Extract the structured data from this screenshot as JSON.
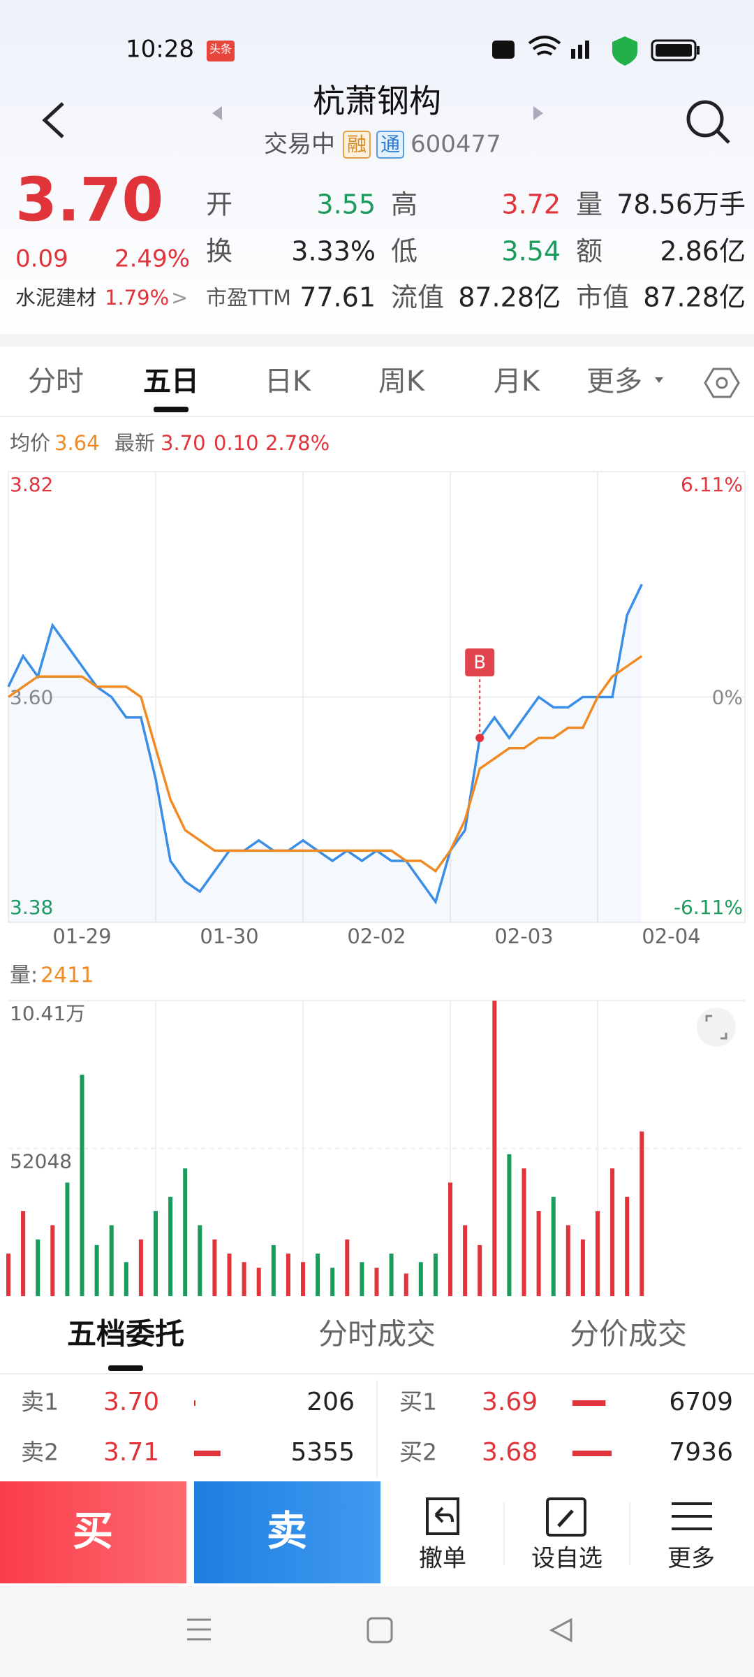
{
  "status_bar": {
    "time": "10:28",
    "badge": "头条"
  },
  "header": {
    "title": "杭萧钢构",
    "status": "交易中",
    "tag1": "融",
    "tag2": "通",
    "code": "600477"
  },
  "quote": {
    "price": "3.70",
    "change": "0.09",
    "change_pct": "2.49%",
    "sector": "水泥建材",
    "sector_pct": "1.79%",
    "sector_arrow": ">",
    "fields": [
      {
        "label": "开",
        "value": "3.55"
      },
      {
        "label": "高",
        "value": "3.72"
      },
      {
        "label": "量",
        "value": "78.56万手"
      },
      {
        "label": "换",
        "value": "3.33%"
      },
      {
        "label": "低",
        "value": "3.54"
      },
      {
        "label": "额",
        "value": "2.86亿"
      },
      {
        "label": "市盈TTM",
        "value": "77.61"
      },
      {
        "label": "流值",
        "value": "87.28亿"
      },
      {
        "label": "市值",
        "value": "87.28亿"
      }
    ]
  },
  "tabs": [
    "分时",
    "五日",
    "日K",
    "周K",
    "月K",
    "更多"
  ],
  "chart_data": [
    {
      "type": "line",
      "x": [
        0,
        0.1,
        0.2,
        0.3,
        0.4,
        0.5,
        0.6,
        0.7,
        0.8,
        0.9,
        1,
        1.1,
        1.2,
        1.3,
        1.4,
        1.5,
        1.6,
        1.7,
        1.8,
        1.9,
        2,
        2.1,
        2.2,
        2.3,
        2.4,
        2.5,
        2.6,
        2.7,
        2.8,
        2.9,
        3,
        3.1,
        3.2,
        3.3,
        3.4,
        3.5,
        3.6,
        3.7,
        3.8,
        3.9,
        4,
        4.1,
        4.2,
        4.3
      ],
      "xlim": [
        0,
        5
      ],
      "xticks": [
        {
          "value": 0.5,
          "label": "01-29"
        },
        {
          "value": 1.5,
          "label": "01-30"
        },
        {
          "value": 2.5,
          "label": "02-02"
        },
        {
          "value": 3.5,
          "label": "02-03"
        },
        {
          "value": 4.5,
          "label": "02-04"
        }
      ],
      "ylim": [
        3.38,
        3.82
      ],
      "yticks": [
        3.82,
        {
          "value": 3.6,
          "label": "3.60"
        },
        3.38
      ],
      "y2lim": [
        -6.11,
        6.11
      ],
      "y2ticks": [
        {
          "value": 6.11,
          "label": "6.11%"
        },
        {
          "value": 0,
          "label": "0%"
        },
        {
          "value": -6.11,
          "label": "-6.11%"
        }
      ],
      "series": [
        {
          "name": "最新",
          "color": "#3a8ee6",
          "legend_text": [
            "3.70",
            "0.10",
            "2.78%"
          ],
          "values": [
            3.61,
            3.64,
            3.62,
            3.67,
            3.65,
            3.63,
            3.61,
            3.6,
            3.58,
            3.58,
            3.52,
            3.44,
            3.42,
            3.41,
            3.43,
            3.45,
            3.45,
            3.46,
            3.45,
            3.45,
            3.46,
            3.45,
            3.44,
            3.45,
            3.44,
            3.45,
            3.44,
            3.44,
            3.42,
            3.4,
            3.45,
            3.47,
            3.56,
            3.58,
            3.56,
            3.58,
            3.6,
            3.59,
            3.59,
            3.6,
            3.6,
            3.6,
            3.68,
            3.71
          ]
        },
        {
          "name": "均价",
          "color": "#f08a24",
          "legend_text": [
            "3.64"
          ],
          "values": [
            3.6,
            3.61,
            3.62,
            3.62,
            3.62,
            3.62,
            3.61,
            3.61,
            3.61,
            3.6,
            3.55,
            3.5,
            3.47,
            3.46,
            3.45,
            3.45,
            3.45,
            3.45,
            3.45,
            3.45,
            3.45,
            3.45,
            3.45,
            3.45,
            3.45,
            3.45,
            3.45,
            3.44,
            3.44,
            3.43,
            3.45,
            3.48,
            3.53,
            3.54,
            3.55,
            3.55,
            3.56,
            3.56,
            3.57,
            3.57,
            3.6,
            3.62,
            3.63,
            3.64
          ]
        }
      ],
      "markers": [
        {
          "label": "B",
          "x": 3.2,
          "y": 3.56
        }
      ]
    },
    {
      "type": "bar",
      "title": "量:",
      "latest": "2411",
      "ylim": [
        0,
        104100
      ],
      "yticks": [
        {
          "value": 104100,
          "label": "10.41万"
        },
        52048
      ],
      "values": [
        15000,
        30000,
        20000,
        25000,
        40000,
        78000,
        18000,
        25000,
        12000,
        20000,
        30000,
        35000,
        45000,
        25000,
        20000,
        15000,
        12000,
        10000,
        18000,
        15000,
        12000,
        15000,
        10000,
        20000,
        12000,
        10000,
        15000,
        8000,
        12000,
        15000,
        40000,
        25000,
        18000,
        104100,
        50000,
        45000,
        30000,
        35000,
        25000,
        20000,
        30000,
        45000,
        35000,
        58000
      ]
    }
  ],
  "book_tabs": [
    "五档委托",
    "分时成交",
    "分价成交"
  ],
  "order_book": {
    "asks": [
      {
        "label": "卖1",
        "price": "3.70",
        "volume": 206
      },
      {
        "label": "卖2",
        "price": "3.71",
        "volume": 5355
      }
    ],
    "bids": [
      {
        "label": "买1",
        "price": "3.69",
        "volume": 6709
      },
      {
        "label": "买2",
        "price": "3.68",
        "volume": 7936
      }
    ]
  },
  "actions": {
    "buy": "买",
    "sell": "卖",
    "cancel": "撤单",
    "watch": "设自选",
    "more": "更多"
  }
}
